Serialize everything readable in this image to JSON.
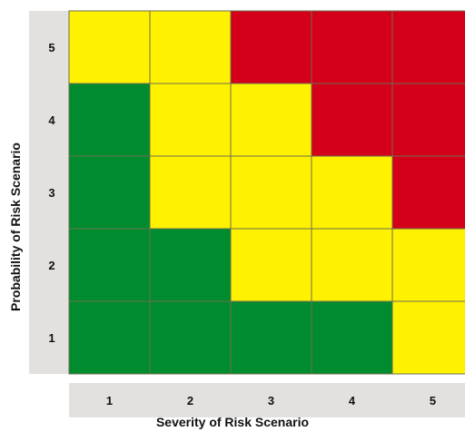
{
  "chart_data": {
    "type": "heatmap",
    "xlabel": "Severity of Risk Scenario",
    "ylabel": "Probability of Risk Scenario",
    "x_categories": [
      "1",
      "2",
      "3",
      "4",
      "5"
    ],
    "y_categories": [
      "1",
      "2",
      "3",
      "4",
      "5"
    ],
    "grid": [
      {
        "probability": "5",
        "cells": [
          "yellow",
          "yellow",
          "red",
          "red",
          "red"
        ]
      },
      {
        "probability": "4",
        "cells": [
          "green",
          "yellow",
          "yellow",
          "red",
          "red"
        ]
      },
      {
        "probability": "3",
        "cells": [
          "green",
          "yellow",
          "yellow",
          "yellow",
          "red"
        ]
      },
      {
        "probability": "2",
        "cells": [
          "green",
          "green",
          "yellow",
          "yellow",
          "yellow"
        ]
      },
      {
        "probability": "1",
        "cells": [
          "green",
          "green",
          "green",
          "green",
          "yellow"
        ]
      }
    ],
    "colors": {
      "green": "#008C2E",
      "yellow": "#FFF200",
      "red": "#D4001A",
      "axis_band": "#E3E1E0",
      "grid_line": "#6E6E50"
    }
  }
}
